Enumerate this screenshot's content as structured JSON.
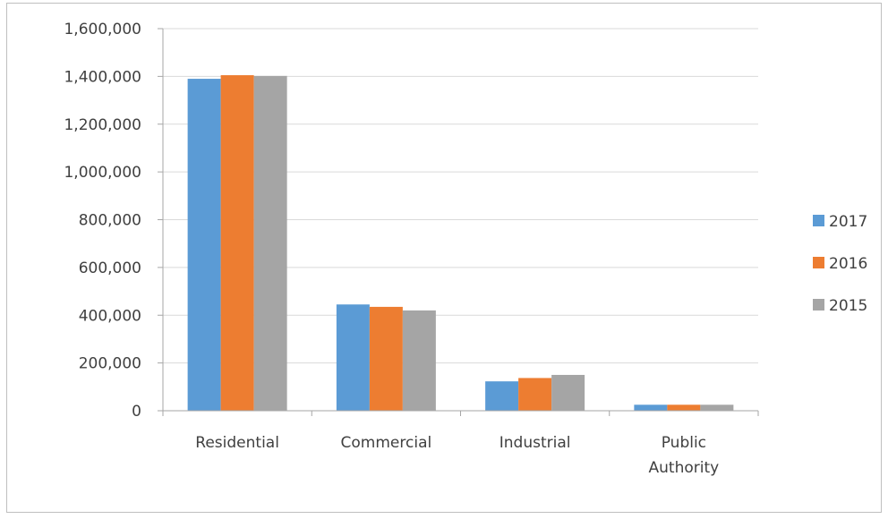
{
  "chart_data": {
    "type": "bar",
    "categories": [
      [
        "Residential"
      ],
      [
        "Commercial"
      ],
      [
        "Industrial"
      ],
      [
        "Public",
        "Authority"
      ]
    ],
    "series": [
      {
        "name": "2017",
        "values": [
          1390000,
          445000,
          123000,
          25000
        ]
      },
      {
        "name": "2016",
        "values": [
          1405000,
          435000,
          137000,
          25000
        ]
      },
      {
        "name": "2015",
        "values": [
          1402000,
          420000,
          150000,
          25000
        ]
      }
    ],
    "ylim": [
      0,
      1600000
    ],
    "yticks": [
      "0",
      "200,000",
      "400,000",
      "600,000",
      "800,000",
      "1,000,000",
      "1,200,000",
      "1,400,000",
      "1,600,000"
    ],
    "ytick_values": [
      0,
      200000,
      400000,
      600000,
      800000,
      1000000,
      1200000,
      1400000,
      1600000
    ],
    "grid": true,
    "legend_position": "right",
    "colors": [
      "#5b9bd5",
      "#ed7d31",
      "#a5a5a5"
    ],
    "xlabel": "",
    "ylabel": "",
    "title": ""
  }
}
